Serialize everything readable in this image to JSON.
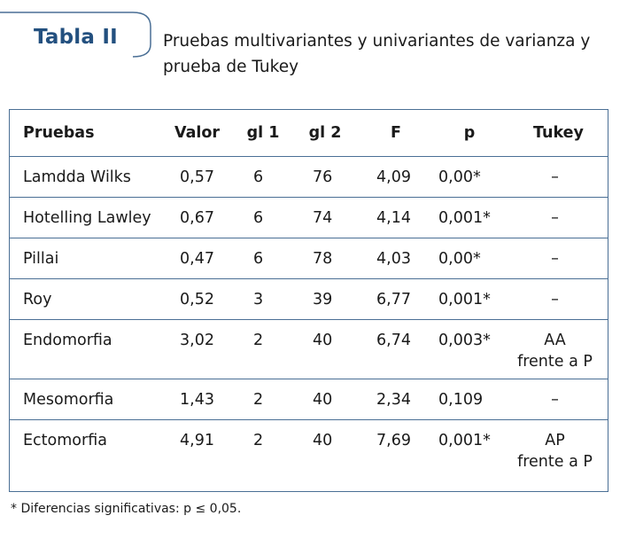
{
  "header": {
    "tab_label": "Tabla II",
    "caption": "Pruebas multivariantes y univariantes de varianza y prueba de Tukey"
  },
  "table": {
    "columns": [
      "Pruebas",
      "Valor",
      "gl 1",
      "gl 2",
      "F",
      "p",
      "Tukey"
    ],
    "rows": [
      {
        "name": "Lamdda Wilks",
        "valor": "0,57",
        "gl1": "6",
        "gl2": "76",
        "f": "4,09",
        "p": "0,00*",
        "tukey": [
          "–"
        ]
      },
      {
        "name": "Hotelling Lawley",
        "valor": "0,67",
        "gl1": "6",
        "gl2": "74",
        "f": "4,14",
        "p": "0,001*",
        "tukey": [
          "–"
        ]
      },
      {
        "name": "Pillai",
        "valor": "0,47",
        "gl1": "6",
        "gl2": "78",
        "f": "4,03",
        "p": "0,00*",
        "tukey": [
          "–"
        ]
      },
      {
        "name": "Roy",
        "valor": "0,52",
        "gl1": "3",
        "gl2": "39",
        "f": "6,77",
        "p": "0,001*",
        "tukey": [
          "–"
        ]
      },
      {
        "name": "Endomorfia",
        "valor": "3,02",
        "gl1": "2",
        "gl2": "40",
        "f": "6,74",
        "p": "0,003*",
        "tukey": [
          "AA",
          "frente a P"
        ]
      },
      {
        "name": "Mesomorfia",
        "valor": "1,43",
        "gl1": "2",
        "gl2": "40",
        "f": "2,34",
        "p": "0,109",
        "tukey": [
          "–"
        ]
      },
      {
        "name": "Ectomorfia",
        "valor": "4,91",
        "gl1": "2",
        "gl2": "40",
        "f": "7,69",
        "p": "0,001*",
        "tukey": [
          "AP",
          "frente a P"
        ]
      }
    ]
  },
  "footnote": "* Diferencias significativas: p ≤ 0,05.",
  "colors": {
    "tab_label": "#23507f",
    "rule": "#4a6f95",
    "text": "#1a1a1a"
  }
}
